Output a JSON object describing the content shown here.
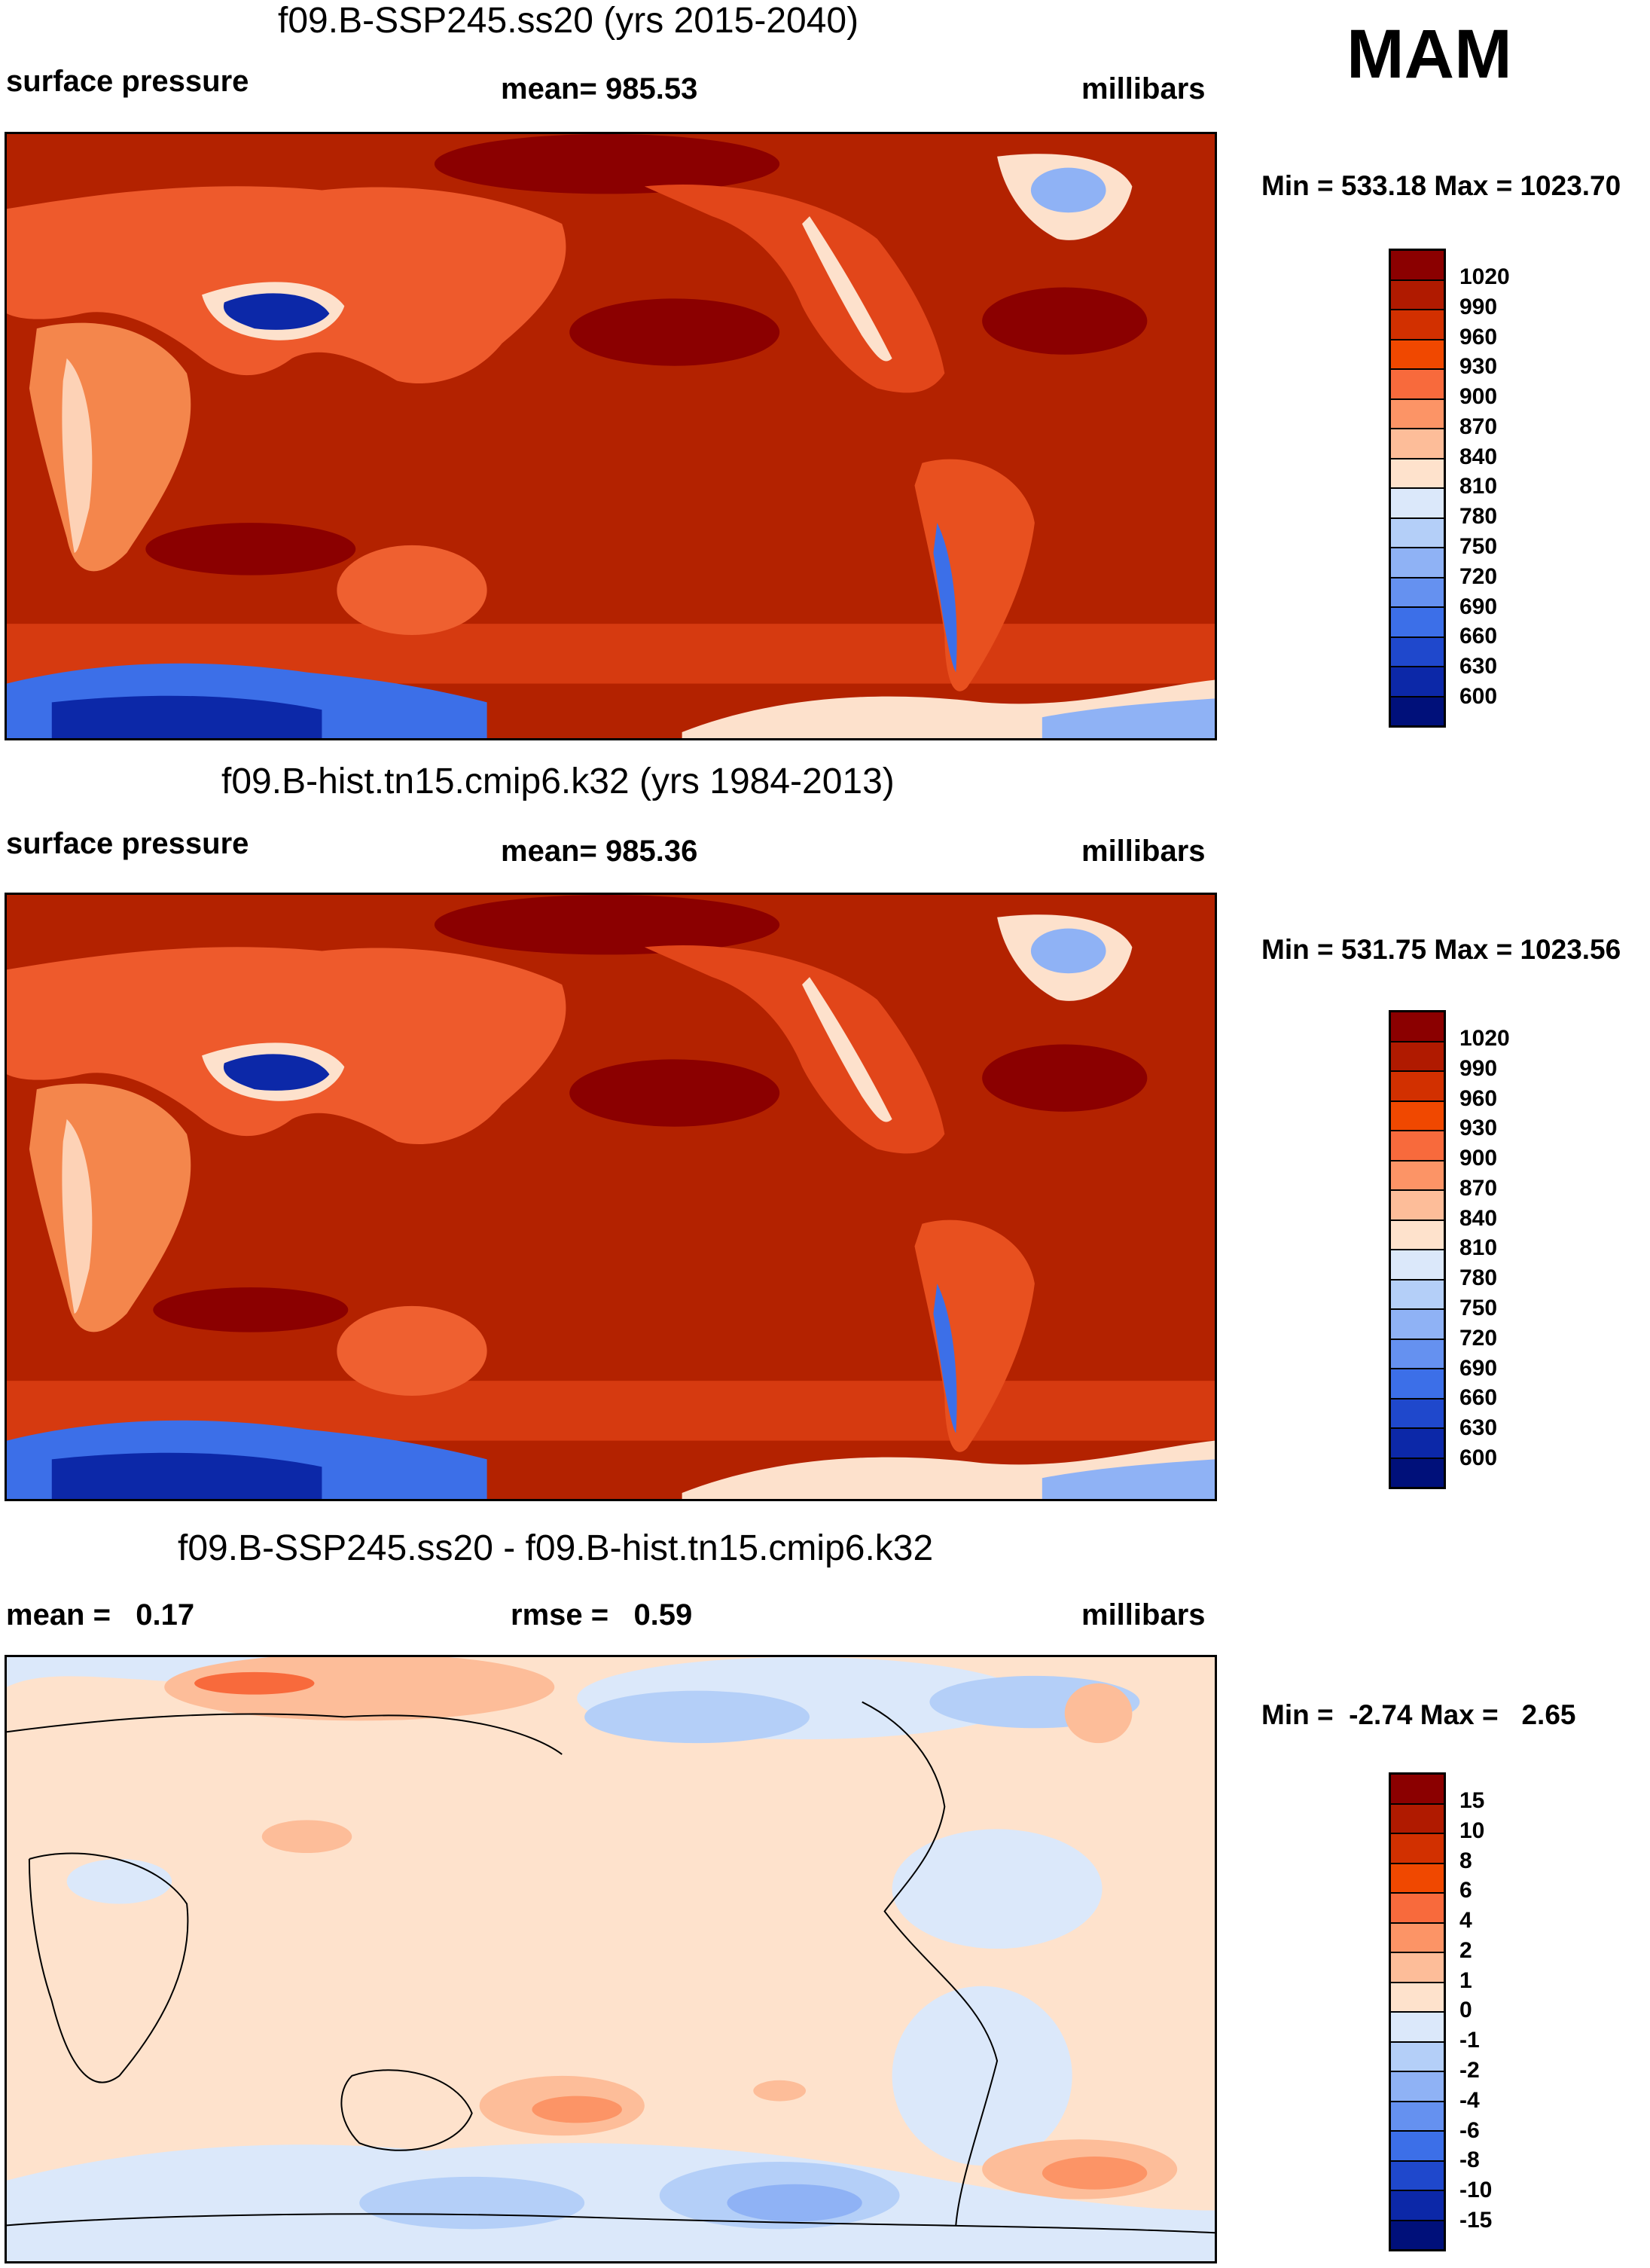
{
  "season": "MAM",
  "panels": [
    {
      "title": "f09.B-SSP245.ss20 (yrs 2015-2040)",
      "left_label": "surface pressure",
      "center_label": "mean= 985.53",
      "right_label": "millibars",
      "minmax": "Min = 533.18 Max = 1023.70",
      "colorbar_labels": [
        "1020",
        "990",
        "960",
        "930",
        "900",
        "870",
        "840",
        "810",
        "780",
        "750",
        "720",
        "690",
        "660",
        "630",
        "600"
      ],
      "colorbar_colors": [
        "#8b0000",
        "#b01a00",
        "#d23000",
        "#f04800",
        "#f86a3c",
        "#fc9466",
        "#fdbd99",
        "#fee2cc",
        "#dbe8fa",
        "#b4cff8",
        "#8fb2f5",
        "#6591f0",
        "#3c6fe8",
        "#1f48cc",
        "#0c28a8",
        "#00107a"
      ]
    },
    {
      "title": "f09.B-hist.tn15.cmip6.k32 (yrs 1984-2013)",
      "left_label": "surface pressure",
      "center_label": "mean= 985.36",
      "right_label": "millibars",
      "minmax": "Min = 531.75 Max = 1023.56",
      "colorbar_labels": [
        "1020",
        "990",
        "960",
        "930",
        "900",
        "870",
        "840",
        "810",
        "780",
        "750",
        "720",
        "690",
        "660",
        "630",
        "600"
      ],
      "colorbar_colors": [
        "#8b0000",
        "#b01a00",
        "#d23000",
        "#f04800",
        "#f86a3c",
        "#fc9466",
        "#fdbd99",
        "#fee2cc",
        "#dbe8fa",
        "#b4cff8",
        "#8fb2f5",
        "#6591f0",
        "#3c6fe8",
        "#1f48cc",
        "#0c28a8",
        "#00107a"
      ]
    },
    {
      "title": "f09.B-SSP245.ss20 - f09.B-hist.tn15.cmip6.k32",
      "left_label": "mean =   0.17",
      "center_label": "rmse =   0.59",
      "right_label": "millibars",
      "minmax": "Min =  -2.74 Max =   2.65",
      "colorbar_labels": [
        "15",
        "10",
        "8",
        "6",
        "4",
        "2",
        "1",
        "0",
        "-1",
        "-2",
        "-4",
        "-6",
        "-8",
        "-10",
        "-15"
      ],
      "colorbar_colors": [
        "#8b0000",
        "#b01a00",
        "#d23000",
        "#f04800",
        "#f86a3c",
        "#fc9466",
        "#fdbd99",
        "#fee2cc",
        "#dbe8fa",
        "#b4cff8",
        "#8fb2f5",
        "#6591f0",
        "#3c6fe8",
        "#1f48cc",
        "#0c28a8",
        "#00107a"
      ]
    }
  ]
}
